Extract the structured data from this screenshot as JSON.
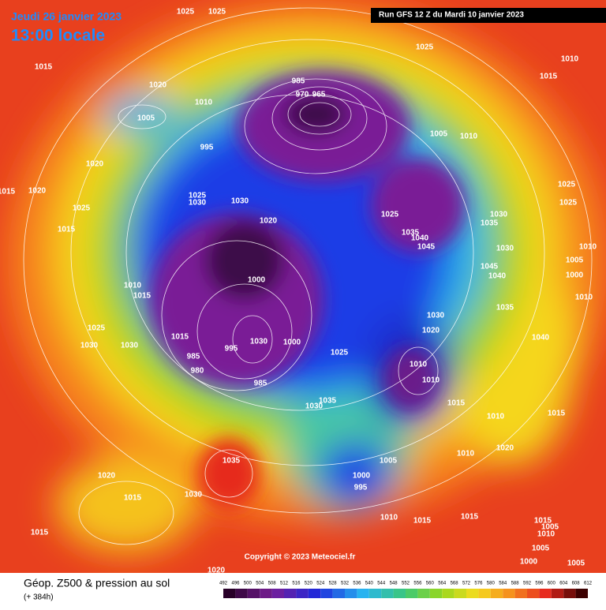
{
  "header": {
    "date": "Jeudi 26 janvier 2023",
    "time": "13:00 locale",
    "run": "Run GFS 12 Z du Mardi 10 janvier 2023"
  },
  "map": {
    "isobar_labels": [
      1025,
      1025,
      1015,
      1020,
      1010,
      1005,
      985,
      970,
      965,
      995,
      1020,
      1020,
      1015,
      1025,
      1015,
      1025,
      1030,
      1030,
      1020,
      1025,
      1035,
      1040,
      1045,
      1005,
      1010,
      1025,
      1010,
      1015,
      1025,
      1025,
      1030,
      1035,
      1010,
      1030,
      1005,
      1045,
      1040,
      1000,
      1010,
      1035,
      1030,
      1020,
      1040,
      1000,
      1010,
      1015,
      1025,
      1030,
      1030,
      1015,
      995,
      985,
      980,
      1000,
      1025,
      1010,
      1010,
      985,
      1030,
      1035,
      1015,
      1010,
      1015,
      1010,
      1020,
      1035,
      1020,
      1015,
      1030,
      1015,
      1005,
      1000,
      995,
      1010,
      1015,
      1015,
      1015,
      1005,
      1010,
      1005,
      1000,
      1005,
      1020,
      1030
    ]
  },
  "copyright": "Copyright © 2023 Meteociel.fr",
  "footer": {
    "title": "Géop. Z500 & pression au sol",
    "subtitle": "(+ 384h)"
  },
  "colorbar": {
    "ticks": [
      492,
      496,
      500,
      504,
      508,
      512,
      516,
      520,
      524,
      528,
      532,
      536,
      540,
      544,
      548,
      552,
      556,
      560,
      564,
      568,
      572,
      576,
      580,
      584,
      588,
      592,
      596,
      600,
      604,
      608,
      612
    ]
  }
}
